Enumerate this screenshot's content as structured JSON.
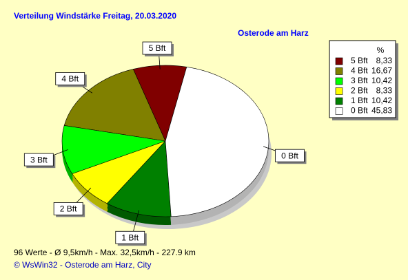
{
  "chart_data": {
    "type": "pie",
    "title": "Verteilung Windstärke  Freitag, 20.03.2020",
    "subtitle": "Osterode am Harz",
    "categories": [
      "5 Bft",
      "4 Bft",
      "3 Bft",
      "2 Bft",
      "1 Bft",
      "0 Bft"
    ],
    "values": [
      8.33,
      16.67,
      10.42,
      8.33,
      10.42,
      45.83
    ],
    "value_labels": [
      "8,33",
      "16,67",
      "10,42",
      "8,33",
      "10,42",
      "45,83"
    ],
    "colors": [
      "#800000",
      "#808000",
      "#00ff00",
      "#ffff00",
      "#008000",
      "#ffffff"
    ],
    "legend_title": "%",
    "legend": "top-right",
    "footer": "96 Werte   -   Ø 9,5km/h  -  Max. 32,5km/h   -    227.9 km",
    "credit": "© WsWin32  -  Osterode am Harz, City"
  }
}
